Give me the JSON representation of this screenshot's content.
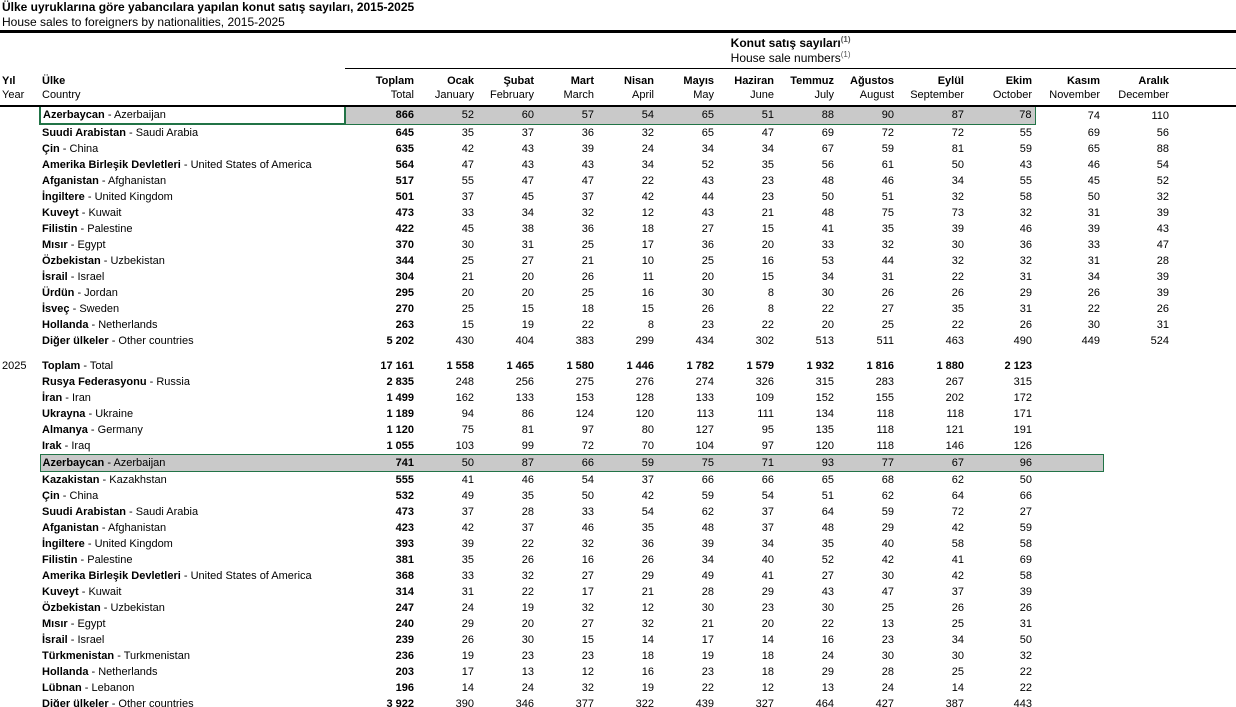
{
  "title_tr": "Ülke uyruklarına göre yabancılara yapılan konut satış sayıları, 2015-2025",
  "title_en": "House sales to foreigners by nationalities, 2015-2025",
  "group_header": {
    "tr": "Konut satış sayıları",
    "en": "House sale numbers",
    "footnote": "(1)"
  },
  "separator": " - ",
  "colors": {
    "selection_fill": "#c9c9c9",
    "selection_border": "#217346"
  },
  "columns": {
    "yil": {
      "tr": "Yıl",
      "en": "Year"
    },
    "ulke": {
      "tr": "Ülke",
      "en": "Country"
    },
    "months": [
      {
        "tr": "Toplam",
        "en": "Total"
      },
      {
        "tr": "Ocak",
        "en": "January"
      },
      {
        "tr": "Şubat",
        "en": "February"
      },
      {
        "tr": "Mart",
        "en": "March"
      },
      {
        "tr": "Nisan",
        "en": "April"
      },
      {
        "tr": "Mayıs",
        "en": "May"
      },
      {
        "tr": "Haziran",
        "en": "June"
      },
      {
        "tr": "Temmuz",
        "en": "July"
      },
      {
        "tr": "Ağustos",
        "en": "August"
      },
      {
        "tr": "Eylül",
        "en": "September"
      },
      {
        "tr": "Ekim",
        "en": "October"
      },
      {
        "tr": "Kasım",
        "en": "November"
      },
      {
        "tr": "Aralık",
        "en": "December"
      }
    ]
  },
  "sections": [
    {
      "year": "",
      "rows": [
        {
          "tr": "Azerbaycan",
          "en": "Azerbaijan",
          "hl": "active",
          "values": [
            "866",
            "52",
            "60",
            "57",
            "54",
            "65",
            "51",
            "88",
            "90",
            "87",
            "78",
            "74",
            "110"
          ]
        },
        {
          "tr": "Suudi Arabistan",
          "en": "Saudi Arabia",
          "values": [
            "645",
            "35",
            "37",
            "36",
            "32",
            "65",
            "47",
            "69",
            "72",
            "72",
            "55",
            "69",
            "56"
          ]
        },
        {
          "tr": "Çin",
          "en": "China",
          "values": [
            "635",
            "42",
            "43",
            "39",
            "24",
            "34",
            "34",
            "67",
            "59",
            "81",
            "59",
            "65",
            "88"
          ]
        },
        {
          "tr": "Amerika Birleşik Devletleri",
          "en": "United States of America",
          "values": [
            "564",
            "47",
            "43",
            "43",
            "34",
            "52",
            "35",
            "56",
            "61",
            "50",
            "43",
            "46",
            "54"
          ]
        },
        {
          "tr": "Afganistan",
          "en": "Afghanistan",
          "values": [
            "517",
            "55",
            "47",
            "47",
            "22",
            "43",
            "23",
            "48",
            "46",
            "34",
            "55",
            "45",
            "52"
          ]
        },
        {
          "tr": "İngiltere",
          "en": "United Kingdom",
          "values": [
            "501",
            "37",
            "45",
            "37",
            "42",
            "44",
            "23",
            "50",
            "51",
            "32",
            "58",
            "50",
            "32"
          ]
        },
        {
          "tr": "Kuveyt",
          "en": "Kuwait",
          "values": [
            "473",
            "33",
            "34",
            "32",
            "12",
            "43",
            "21",
            "48",
            "75",
            "73",
            "32",
            "31",
            "39"
          ]
        },
        {
          "tr": "Filistin",
          "en": "Palestine",
          "values": [
            "422",
            "45",
            "38",
            "36",
            "18",
            "27",
            "15",
            "41",
            "35",
            "39",
            "46",
            "39",
            "43"
          ]
        },
        {
          "tr": "Mısır",
          "en": "Egypt",
          "values": [
            "370",
            "30",
            "31",
            "25",
            "17",
            "36",
            "20",
            "33",
            "32",
            "30",
            "36",
            "33",
            "47"
          ]
        },
        {
          "tr": "Özbekistan",
          "en": "Uzbekistan",
          "values": [
            "344",
            "25",
            "27",
            "21",
            "10",
            "25",
            "16",
            "53",
            "44",
            "32",
            "32",
            "31",
            "28"
          ]
        },
        {
          "tr": "İsrail",
          "en": "Israel",
          "values": [
            "304",
            "21",
            "20",
            "26",
            "11",
            "20",
            "15",
            "34",
            "31",
            "22",
            "31",
            "34",
            "39"
          ]
        },
        {
          "tr": "Ürdün",
          "en": "Jordan",
          "values": [
            "295",
            "20",
            "20",
            "25",
            "16",
            "30",
            "8",
            "30",
            "26",
            "26",
            "29",
            "26",
            "39"
          ]
        },
        {
          "tr": "İsveç",
          "en": "Sweden",
          "values": [
            "270",
            "25",
            "15",
            "18",
            "15",
            "26",
            "8",
            "22",
            "27",
            "35",
            "31",
            "22",
            "26"
          ]
        },
        {
          "tr": "Hollanda",
          "en": "Netherlands",
          "values": [
            "263",
            "15",
            "19",
            "22",
            "8",
            "23",
            "22",
            "20",
            "25",
            "22",
            "26",
            "30",
            "31"
          ]
        },
        {
          "tr": "Diğer ülkeler",
          "en": "Other countries",
          "values": [
            "5 202",
            "430",
            "404",
            "383",
            "299",
            "434",
            "302",
            "513",
            "511",
            "463",
            "490",
            "449",
            "524"
          ]
        }
      ]
    },
    {
      "year": "2025",
      "rows": [
        {
          "tr": "Toplam",
          "en": "Total",
          "bold": true,
          "values": [
            "17 161",
            "1 558",
            "1 465",
            "1 580",
            "1 446",
            "1 782",
            "1 579",
            "1 932",
            "1 816",
            "1 880",
            "2 123",
            "",
            ""
          ]
        },
        {
          "tr": "Rusya Federasyonu",
          "en": "Russia",
          "values": [
            "2 835",
            "248",
            "256",
            "275",
            "276",
            "274",
            "326",
            "315",
            "283",
            "267",
            "315",
            "",
            ""
          ]
        },
        {
          "tr": "İran",
          "en": "Iran",
          "values": [
            "1 499",
            "162",
            "133",
            "153",
            "128",
            "133",
            "109",
            "152",
            "155",
            "202",
            "172",
            "",
            ""
          ]
        },
        {
          "tr": "Ukrayna",
          "en": "Ukraine",
          "values": [
            "1 189",
            "94",
            "86",
            "124",
            "120",
            "113",
            "111",
            "134",
            "118",
            "118",
            "171",
            "",
            ""
          ]
        },
        {
          "tr": "Almanya",
          "en": "Germany",
          "values": [
            "1 120",
            "75",
            "81",
            "97",
            "80",
            "127",
            "95",
            "135",
            "118",
            "121",
            "191",
            "",
            ""
          ]
        },
        {
          "tr": "Irak",
          "en": "Iraq",
          "values": [
            "1 055",
            "103",
            "99",
            "72",
            "70",
            "104",
            "97",
            "120",
            "118",
            "146",
            "126",
            "",
            ""
          ]
        },
        {
          "tr": "Azerbaycan",
          "en": "Azerbaijan",
          "hl": "range",
          "values": [
            "741",
            "50",
            "87",
            "66",
            "59",
            "75",
            "71",
            "93",
            "77",
            "67",
            "96",
            "",
            ""
          ]
        },
        {
          "tr": "Kazakistan",
          "en": "Kazakhstan",
          "values": [
            "555",
            "41",
            "46",
            "54",
            "37",
            "66",
            "66",
            "65",
            "68",
            "62",
            "50",
            "",
            ""
          ]
        },
        {
          "tr": "Çin",
          "en": "China",
          "values": [
            "532",
            "49",
            "35",
            "50",
            "42",
            "59",
            "54",
            "51",
            "62",
            "64",
            "66",
            "",
            ""
          ]
        },
        {
          "tr": "Suudi Arabistan",
          "en": "Saudi Arabia",
          "values": [
            "473",
            "37",
            "28",
            "33",
            "54",
            "62",
            "37",
            "64",
            "59",
            "72",
            "27",
            "",
            ""
          ]
        },
        {
          "tr": "Afganistan",
          "en": "Afghanistan",
          "values": [
            "423",
            "42",
            "37",
            "46",
            "35",
            "48",
            "37",
            "48",
            "29",
            "42",
            "59",
            "",
            ""
          ]
        },
        {
          "tr": "İngiltere",
          "en": "United Kingdom",
          "values": [
            "393",
            "39",
            "22",
            "32",
            "36",
            "39",
            "34",
            "35",
            "40",
            "58",
            "58",
            "",
            ""
          ]
        },
        {
          "tr": "Filistin",
          "en": "Palestine",
          "values": [
            "381",
            "35",
            "26",
            "16",
            "26",
            "34",
            "40",
            "52",
            "42",
            "41",
            "69",
            "",
            ""
          ]
        },
        {
          "tr": "Amerika Birleşik Devletleri",
          "en": "United States of America",
          "values": [
            "368",
            "33",
            "32",
            "27",
            "29",
            "49",
            "41",
            "27",
            "30",
            "42",
            "58",
            "",
            ""
          ]
        },
        {
          "tr": "Kuveyt",
          "en": "Kuwait",
          "values": [
            "314",
            "31",
            "22",
            "17",
            "21",
            "28",
            "29",
            "43",
            "47",
            "37",
            "39",
            "",
            ""
          ]
        },
        {
          "tr": "Özbekistan",
          "en": "Uzbekistan",
          "values": [
            "247",
            "24",
            "19",
            "32",
            "12",
            "30",
            "23",
            "30",
            "25",
            "26",
            "26",
            "",
            ""
          ]
        },
        {
          "tr": "Mısır",
          "en": "Egypt",
          "values": [
            "240",
            "29",
            "20",
            "27",
            "32",
            "21",
            "20",
            "22",
            "13",
            "25",
            "31",
            "",
            ""
          ]
        },
        {
          "tr": "İsrail",
          "en": "Israel",
          "values": [
            "239",
            "26",
            "30",
            "15",
            "14",
            "17",
            "14",
            "16",
            "23",
            "34",
            "50",
            "",
            ""
          ]
        },
        {
          "tr": "Türkmenistan",
          "en": "Turkmenistan",
          "values": [
            "236",
            "19",
            "23",
            "23",
            "18",
            "19",
            "18",
            "24",
            "30",
            "30",
            "32",
            "",
            ""
          ]
        },
        {
          "tr": "Hollanda",
          "en": "Netherlands",
          "values": [
            "203",
            "17",
            "13",
            "12",
            "16",
            "23",
            "18",
            "29",
            "28",
            "25",
            "22",
            "",
            ""
          ]
        },
        {
          "tr": "Lübnan",
          "en": "Lebanon",
          "values": [
            "196",
            "14",
            "24",
            "32",
            "19",
            "22",
            "12",
            "13",
            "24",
            "14",
            "22",
            "",
            ""
          ]
        },
        {
          "tr": "Diğer ülkeler",
          "en": "Other countries",
          "clipped": true,
          "values": [
            "3 922",
            "390",
            "346",
            "377",
            "322",
            "439",
            "327",
            "464",
            "427",
            "387",
            "443",
            "",
            ""
          ]
        }
      ]
    }
  ]
}
